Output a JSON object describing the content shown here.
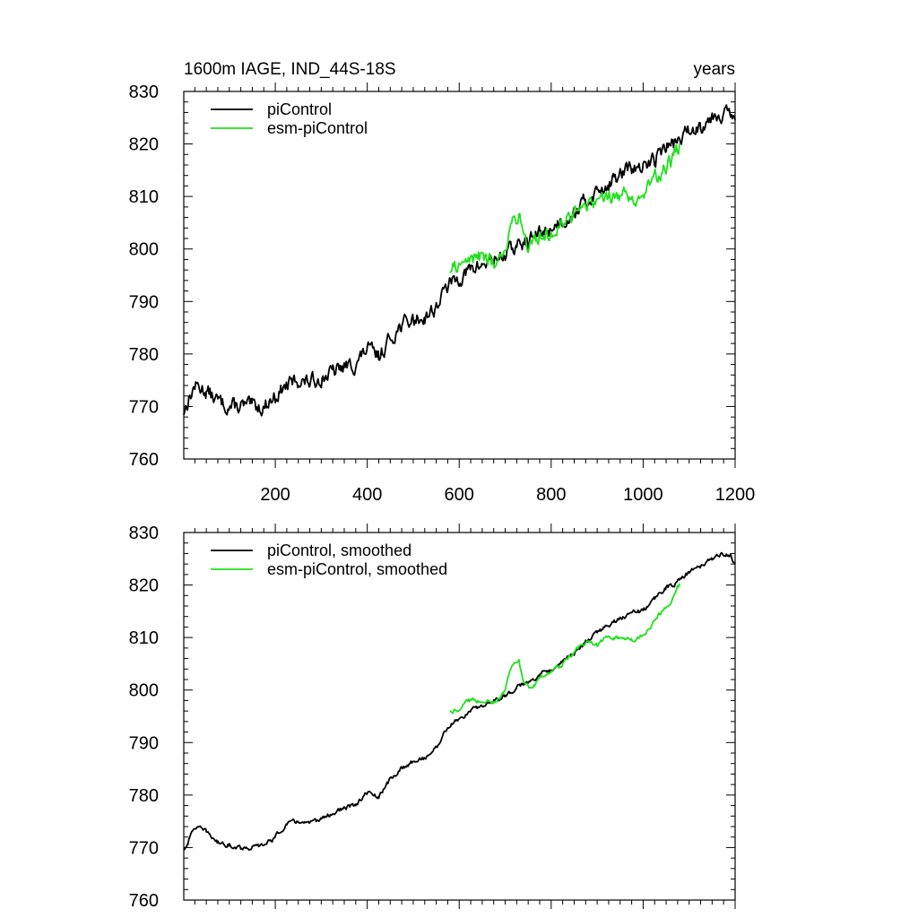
{
  "colors": {
    "piControl": "#000000",
    "esm-piControl": "#22e01e",
    "axis": "#000000",
    "background": "#ffffff"
  },
  "chart_data": [
    {
      "type": "line",
      "title": "1600m IAGE, IND_44S-18S",
      "title_right": "years",
      "xlabel": "",
      "ylabel": "",
      "xlim": [
        1,
        1200
      ],
      "ylim": [
        760,
        830
      ],
      "x_tick_values": [
        200,
        400,
        600,
        800,
        1000,
        1200
      ],
      "x_tick_labels": [
        "200",
        "400",
        "600",
        "800",
        "1000",
        "1200"
      ],
      "y_tick_values": [
        760,
        770,
        780,
        790,
        800,
        810,
        820,
        830
      ],
      "y_tick_labels": [
        "760",
        "770",
        "780",
        "790",
        "800",
        "810",
        "820",
        "830"
      ],
      "grid": false,
      "legend_position": "top-left",
      "noise": 1.5,
      "series": [
        {
          "name": "piControl",
          "color_key": "piControl",
          "x": [
            1,
            10,
            25,
            50,
            75,
            100,
            125,
            150,
            175,
            200,
            225,
            250,
            275,
            300,
            325,
            350,
            375,
            400,
            425,
            450,
            475,
            500,
            525,
            550,
            575,
            600,
            625,
            650,
            675,
            700,
            725,
            750,
            775,
            800,
            825,
            850,
            875,
            900,
            925,
            950,
            975,
            1000,
            1025,
            1050,
            1075,
            1100,
            1125,
            1150,
            1175,
            1190,
            1200
          ],
          "y": [
            769,
            771,
            774,
            773,
            771,
            770,
            770,
            770,
            770,
            772,
            774,
            775,
            774.5,
            775.5,
            776.5,
            777.5,
            778,
            781,
            779.5,
            783,
            785.5,
            786.5,
            787,
            789,
            793,
            794.5,
            796,
            797,
            798,
            799,
            800.5,
            801.5,
            803,
            804,
            805.5,
            807,
            809,
            811,
            812.5,
            814,
            815.5,
            815,
            817.5,
            819.5,
            820.5,
            822.5,
            823.5,
            825.5,
            826,
            825.5,
            824.5
          ]
        },
        {
          "name": "esm-piControl",
          "color_key": "esm-piControl",
          "x": [
            580,
            600,
            620,
            640,
            660,
            680,
            700,
            710,
            720,
            730,
            740,
            750,
            760,
            780,
            800,
            820,
            840,
            860,
            880,
            900,
            920,
            940,
            960,
            980,
            1000,
            1020,
            1040,
            1060,
            1075,
            1080
          ],
          "y": [
            796,
            797,
            798,
            798.5,
            798,
            797.5,
            800,
            804,
            806,
            806.5,
            803,
            800.5,
            800.5,
            802.5,
            803.5,
            804.5,
            806.5,
            808,
            809,
            808.5,
            810.5,
            810,
            810.5,
            810,
            810.5,
            812.5,
            815,
            816.5,
            819,
            820
          ]
        }
      ]
    },
    {
      "type": "line",
      "title": "",
      "xlabel": "",
      "ylabel": "",
      "xlim": [
        1,
        1200
      ],
      "ylim": [
        760,
        830
      ],
      "x_tick_values": [
        200,
        400,
        600,
        800,
        1000,
        1200
      ],
      "x_tick_labels": [],
      "y_tick_values": [
        760,
        770,
        780,
        790,
        800,
        810,
        820,
        830
      ],
      "y_tick_labels": [
        "760",
        "770",
        "780",
        "790",
        "800",
        "810",
        "820",
        "830"
      ],
      "grid": false,
      "legend_position": "top-left",
      "noise": 0.45,
      "series": [
        {
          "name": "piControl, smoothed",
          "color_key": "piControl",
          "x": [
            1,
            10,
            25,
            50,
            75,
            100,
            125,
            150,
            175,
            200,
            225,
            250,
            275,
            300,
            325,
            350,
            375,
            400,
            425,
            450,
            475,
            500,
            525,
            550,
            575,
            600,
            625,
            650,
            675,
            700,
            725,
            750,
            775,
            800,
            825,
            850,
            875,
            900,
            925,
            950,
            975,
            1000,
            1025,
            1050,
            1075,
            1100,
            1125,
            1150,
            1175,
            1190,
            1200
          ],
          "y": [
            769.5,
            771,
            774,
            773,
            771,
            770.5,
            770,
            770,
            770.5,
            772,
            774.5,
            775,
            774.5,
            775.5,
            776.5,
            777.5,
            778,
            780.5,
            779.5,
            783,
            785,
            786.5,
            787,
            789,
            793,
            794.5,
            796,
            797,
            798,
            799,
            800.5,
            801.5,
            803,
            804,
            805.5,
            807,
            809,
            811,
            812.5,
            813.5,
            815,
            815,
            817.5,
            819.5,
            820.5,
            822.5,
            823.5,
            825,
            826,
            825.5,
            824
          ]
        },
        {
          "name": "esm-piControl, smoothed",
          "color_key": "esm-piControl",
          "x": [
            580,
            600,
            620,
            640,
            660,
            680,
            700,
            710,
            720,
            730,
            740,
            750,
            760,
            780,
            800,
            820,
            840,
            860,
            880,
            900,
            920,
            940,
            960,
            980,
            1000,
            1020,
            1040,
            1060,
            1075,
            1080
          ],
          "y": [
            796,
            796.5,
            798,
            798,
            798,
            797.5,
            800,
            803.5,
            805.5,
            805.5,
            801.5,
            800.5,
            800.5,
            802.5,
            803.5,
            804.5,
            806.5,
            808,
            809,
            808.5,
            810.5,
            810,
            810,
            809.5,
            810.5,
            812.5,
            815,
            816.5,
            819.5,
            820
          ]
        }
      ]
    }
  ]
}
